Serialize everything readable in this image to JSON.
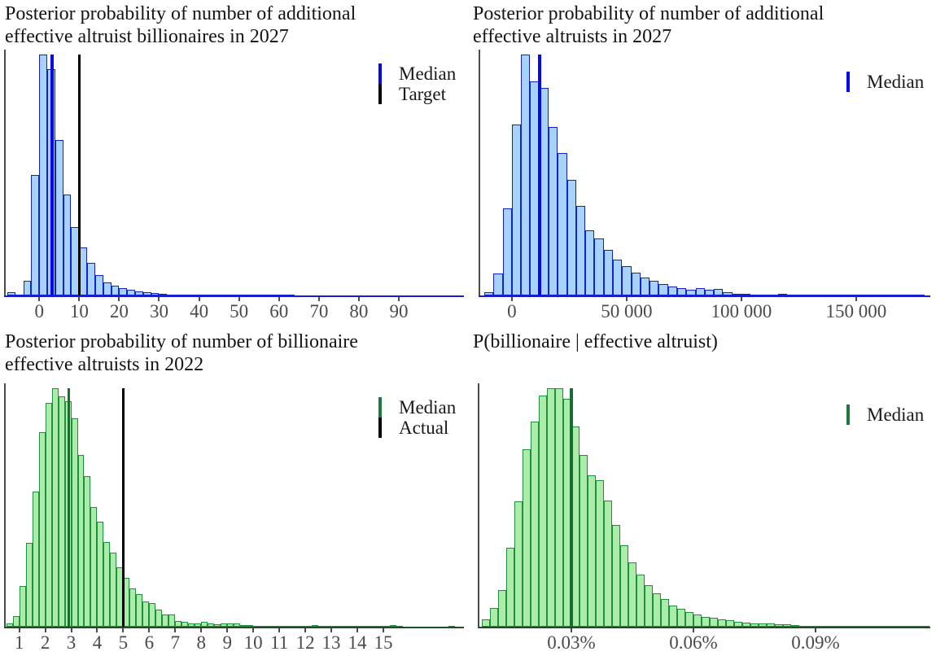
{
  "chart_data": [
    {
      "type": "histogram",
      "title_lines": [
        "Posterior probability of number of additional",
        "effective altruist billionaires in 2027"
      ],
      "bin_start": -8,
      "bin_width": 2,
      "heights": [
        0.012,
        0.004,
        0.06,
        0.5,
        1.0,
        0.94,
        0.645,
        0.42,
        0.285,
        0.2,
        0.135,
        0.085,
        0.055,
        0.042,
        0.032,
        0.024,
        0.017,
        0.012,
        0.009,
        0.006,
        0.005,
        0.004,
        0.004,
        0.003,
        0.003,
        0.002,
        0.002,
        0.0015,
        0.001,
        0.001,
        0.001,
        0.0008,
        0.0008,
        0.0006,
        0.0005,
        0.0005
      ],
      "x_range": [
        -8.4,
        106.3
      ],
      "x_ticks": [
        {
          "v": 0,
          "label": "0"
        },
        {
          "v": 10,
          "label": "10"
        },
        {
          "v": 20,
          "label": "20"
        },
        {
          "v": 30,
          "label": "30"
        },
        {
          "v": 40,
          "label": "40"
        },
        {
          "v": 50,
          "label": "50"
        },
        {
          "v": 60,
          "label": "60"
        },
        {
          "v": 70,
          "label": "70"
        },
        {
          "v": 80,
          "label": "80"
        },
        {
          "v": 90,
          "label": "90"
        }
      ],
      "vlines": [
        {
          "label": "Median",
          "v": 3.3,
          "color": "#0707ee",
          "w": 4
        },
        {
          "label": "Target",
          "v": 10,
          "color": "#000000",
          "w": 3
        }
      ],
      "legend": [
        {
          "label": "Median",
          "color": "#0707ee"
        },
        {
          "label": "Target",
          "color": "#000000"
        }
      ],
      "bar_fill": "#a7d2fa",
      "bar_stroke": "#1420d2",
      "axis_color": "#1a1ec8"
    },
    {
      "type": "histogram",
      "title_lines": [
        "Posterior probability of number of additional",
        "effective altruists in 2027"
      ],
      "bin_start": -12000,
      "bin_width": 4000,
      "heights": [
        0.015,
        0.09,
        0.36,
        0.71,
        1.0,
        0.89,
        0.86,
        0.7,
        0.59,
        0.48,
        0.37,
        0.27,
        0.235,
        0.19,
        0.15,
        0.12,
        0.095,
        0.075,
        0.06,
        0.048,
        0.038,
        0.03,
        0.024,
        0.03,
        0.022,
        0.028,
        0.012,
        0.008,
        0.006,
        0.005,
        0.004,
        0.004,
        0.008,
        0.004,
        0.002,
        0.002,
        0.0015,
        0.0015,
        0.001,
        0.001,
        0.001,
        0.0008,
        0.0008,
        0.0006,
        0.0006,
        0.0005,
        0.0005,
        0.0004
      ],
      "x_range": [
        -13800,
        182300
      ],
      "x_ticks": [
        {
          "v": 0,
          "label": "0"
        },
        {
          "v": 50000,
          "label": "50 000"
        },
        {
          "v": 100000,
          "label": "100 000"
        },
        {
          "v": 150000,
          "label": "150 000"
        }
      ],
      "vlines": [
        {
          "label": "Median",
          "v": 12000,
          "color": "#0707ee",
          "w": 4
        }
      ],
      "legend": [
        {
          "label": "Median",
          "color": "#0707ee"
        }
      ],
      "bar_fill": "#a7d2fa",
      "bar_stroke": "#1420d2",
      "axis_color": "#1a1ec8"
    },
    {
      "type": "histogram",
      "title_lines": [
        "Posterior probability of number of billionaire",
        "effective altruists in 2022"
      ],
      "bin_start": 0.5,
      "bin_width": 0.25,
      "heights": [
        0.012,
        0.045,
        0.17,
        0.35,
        0.565,
        0.815,
        0.94,
        1.0,
        0.965,
        0.945,
        0.875,
        0.72,
        0.63,
        0.5,
        0.44,
        0.355,
        0.31,
        0.25,
        0.205,
        0.16,
        0.135,
        0.105,
        0.1,
        0.07,
        0.05,
        0.05,
        0.025,
        0.02,
        0.015,
        0.015,
        0.02,
        0.015,
        0.01,
        0.012,
        0.012,
        0.012,
        0.008,
        0.006,
        0.005,
        0.005,
        0.004,
        0.004,
        0.003,
        0.004,
        0.003,
        0.002,
        0.003,
        0.008,
        0.002,
        0.002,
        0.002,
        0.001,
        0.001,
        0.001,
        0.002,
        0.001,
        0.001,
        0.001,
        0.001,
        0.006,
        0.001,
        0,
        0,
        0,
        0,
        0,
        0,
        0,
        0.002
      ],
      "x_range": [
        0.48,
        18.1
      ],
      "x_ticks": [
        {
          "v": 1,
          "label": "1"
        },
        {
          "v": 2,
          "label": "2"
        },
        {
          "v": 3,
          "label": "3"
        },
        {
          "v": 4,
          "label": "4"
        },
        {
          "v": 5,
          "label": "5"
        },
        {
          "v": 6,
          "label": "6"
        },
        {
          "v": 7,
          "label": "7"
        },
        {
          "v": 8,
          "label": "8"
        },
        {
          "v": 9,
          "label": "9"
        },
        {
          "v": 10,
          "label": "10"
        },
        {
          "v": 11,
          "label": "11"
        },
        {
          "v": 12,
          "label": "12"
        },
        {
          "v": 13,
          "label": "13"
        },
        {
          "v": 14,
          "label": "14"
        },
        {
          "v": 15,
          "label": "15"
        }
      ],
      "vlines": [
        {
          "label": "Median",
          "v": 2.9,
          "color": "#15702f",
          "w": 3.5
        },
        {
          "label": "Actual",
          "v": 5,
          "color": "#000000",
          "w": 3
        }
      ],
      "legend": [
        {
          "label": "Median",
          "color": "#1d7a3c"
        },
        {
          "label": "Actual",
          "color": "#000000"
        }
      ],
      "bar_fill": "#aaeca8",
      "bar_stroke": "#1d8f3f",
      "axis_color": "#1c4f24"
    },
    {
      "type": "histogram",
      "title_lines": [
        "P(billionaire | effective altruist)"
      ],
      "bin_start": 0.008,
      "bin_width": 0.002,
      "heights": [
        0.03,
        0.08,
        0.155,
        0.33,
        0.525,
        0.745,
        0.86,
        0.97,
        1.0,
        1.0,
        0.955,
        0.84,
        0.72,
        0.635,
        0.615,
        0.53,
        0.425,
        0.34,
        0.27,
        0.22,
        0.175,
        0.14,
        0.115,
        0.09,
        0.075,
        0.06,
        0.05,
        0.042,
        0.036,
        0.03,
        0.027,
        0.022,
        0.018,
        0.014,
        0.012,
        0.014,
        0.011,
        0.009,
        0.007,
        0.005,
        0.004,
        0.0035,
        0.003,
        0.002,
        0.004,
        0.002,
        0.002,
        0.001,
        0.003,
        0.001,
        0.001,
        0.002,
        0.001,
        0.001,
        0.002
      ],
      "x_range": [
        0.0074,
        0.1182
      ],
      "x_ticks": [
        {
          "v": 0.03,
          "label": "0.03%"
        },
        {
          "v": 0.06,
          "label": "0.06%"
        },
        {
          "v": 0.09,
          "label": "0.09%"
        }
      ],
      "vlines": [
        {
          "label": "Median",
          "v": 0.03,
          "color": "#15702f",
          "w": 3.5
        }
      ],
      "legend": [
        {
          "label": "Median",
          "color": "#1d7a3c"
        }
      ],
      "bar_fill": "#aaeca8",
      "bar_stroke": "#1d8f3f",
      "axis_color": "#1c4f24"
    }
  ]
}
